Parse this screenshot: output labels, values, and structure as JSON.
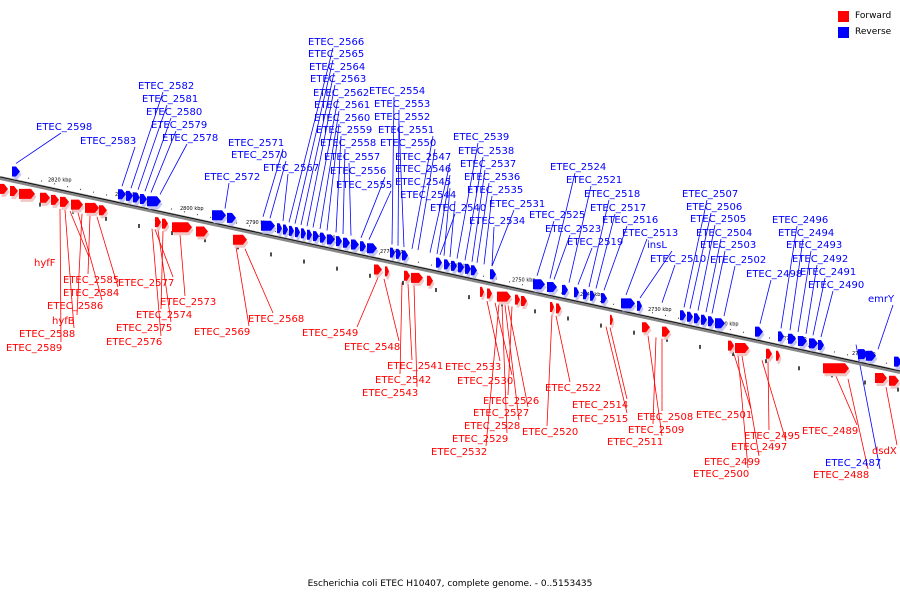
{
  "legend": {
    "forward_label": "Forward",
    "reverse_label": "Reverse",
    "forward_color": "#ff0000",
    "reverse_color": "#0000ff"
  },
  "caption": "Escherichia coli ETEC H10407, complete genome. - 0..5153435",
  "ticks": [
    "2820 kbp",
    "2810 kbp",
    "2800 kbp",
    "2790 kbp",
    "2780 kbp",
    "2770 kbp",
    "2760 kbp",
    "2750 kbp",
    "2740 kbp",
    "2730 kbp",
    "2720 kbp",
    "2710 kbp",
    "2700 kbp"
  ],
  "reverse_labels": [
    "ETEC_2598",
    "ETEC_2583",
    "ETEC_2582",
    "ETEC_2581",
    "ETEC_2580",
    "ETEC_2579",
    "ETEC_2578",
    "ETEC_2572",
    "ETEC_2571",
    "ETEC_2570",
    "ETEC_2567",
    "ETEC_2566",
    "ETEC_2565",
    "ETEC_2564",
    "ETEC_2563",
    "ETEC_2562",
    "ETEC_2561",
    "ETEC_2560",
    "ETEC_2559",
    "ETEC_2558",
    "ETEC_2557",
    "ETEC_2556",
    "ETEC_2555",
    "ETEC_2554",
    "ETEC_2553",
    "ETEC_2552",
    "ETEC_2551",
    "ETEC_2550",
    "ETEC_2547",
    "ETEC_2546",
    "ETEC_2545",
    "ETEC_2544",
    "ETEC_2540",
    "ETEC_2539",
    "ETEC_2538",
    "ETEC_2537",
    "ETEC_2536",
    "ETEC_2535",
    "ETEC_2534",
    "ETEC_2531",
    "ETEC_2525",
    "ETEC_2524",
    "ETEC_2523",
    "ETEC_2521",
    "ETEC_2519",
    "ETEC_2518",
    "ETEC_2517",
    "ETEC_2516",
    "ETEC_2513",
    "insL",
    "ETEC_2510",
    "ETEC_2507",
    "ETEC_2506",
    "ETEC_2505",
    "ETEC_2504",
    "ETEC_2503",
    "ETEC_2502",
    "ETEC_2498",
    "ETEC_2496",
    "ETEC_2494",
    "ETEC_2493",
    "ETEC_2492",
    "ETEC_2491",
    "ETEC_2490",
    "emrY",
    "ETEC_2487"
  ],
  "forward_labels": [
    "hyfF",
    "ETEC_2585",
    "ETEC_2584",
    "hyfB",
    "ETEC_2586",
    "ETEC_2588",
    "ETEC_2589",
    "ETEC_2577",
    "ETEC_2573",
    "ETEC_2574",
    "ETEC_2575",
    "ETEC_2576",
    "ETEC_2569",
    "ETEC_2568",
    "ETEC_2549",
    "ETEC_2548",
    "ETEC_2541",
    "ETEC_2542",
    "ETEC_2543",
    "ETEC_2533",
    "ETEC_2530",
    "ETEC_2526",
    "ETEC_2527",
    "ETEC_2528",
    "ETEC_2529",
    "ETEC_2532",
    "ETEC_2522",
    "ETEC_2520",
    "ETEC_2514",
    "ETEC_2515",
    "ETEC_2508",
    "ETEC_2509",
    "ETEC_2511",
    "ETEC_2501",
    "ETEC_2499",
    "ETEC_2500",
    "ETEC_2495",
    "ETEC_2497",
    "ETEC_2489",
    "ETEC_2488",
    "dsdX"
  ]
}
